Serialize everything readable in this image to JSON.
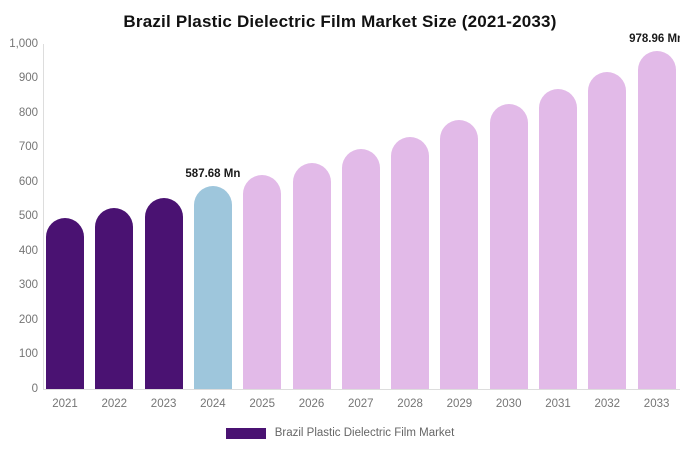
{
  "chart_data": {
    "type": "bar",
    "title": "Brazil Plastic Dielectric Film Market Size (2021-2033)",
    "unit": "Mn",
    "categories": [
      "2021",
      "2022",
      "2023",
      "2024",
      "2025",
      "2026",
      "2027",
      "2028",
      "2029",
      "2030",
      "2031",
      "2032",
      "2033"
    ],
    "values": [
      495,
      525,
      555,
      587.68,
      620,
      655,
      695,
      730,
      780,
      825,
      870,
      920,
      978.96
    ],
    "bar_roles": [
      "historical",
      "historical",
      "historical",
      "current",
      "forecast",
      "forecast",
      "forecast",
      "forecast",
      "forecast",
      "forecast",
      "forecast",
      "forecast",
      "forecast"
    ],
    "colors": {
      "historical": "#4A1272",
      "current": "#9EC6DC",
      "forecast": "#E2BAE8",
      "axis": "#dddddd",
      "tick_label": "#757575",
      "title": "#111111"
    },
    "annotations": [
      {
        "category": "2024",
        "text": "587.68 Mn"
      },
      {
        "category": "2033",
        "text": "978.96 Mn"
      }
    ],
    "y_ticks": [
      {
        "value": 0,
        "label": "0"
      },
      {
        "value": 100,
        "label": "100"
      },
      {
        "value": 200,
        "label": "200"
      },
      {
        "value": 300,
        "label": "300"
      },
      {
        "value": 400,
        "label": "400"
      },
      {
        "value": 500,
        "label": "500"
      },
      {
        "value": 600,
        "label": "600"
      },
      {
        "value": 700,
        "label": "700"
      },
      {
        "value": 800,
        "label": "800"
      },
      {
        "value": 900,
        "label": "900"
      },
      {
        "value": 1000,
        "label": "1,000"
      }
    ],
    "ylim": [
      0,
      1000
    ],
    "grid": false,
    "legend_position": "bottom-center",
    "legend": [
      {
        "label": "Brazil Plastic Dielectric Film Market",
        "color": "#4A1272"
      }
    ]
  }
}
